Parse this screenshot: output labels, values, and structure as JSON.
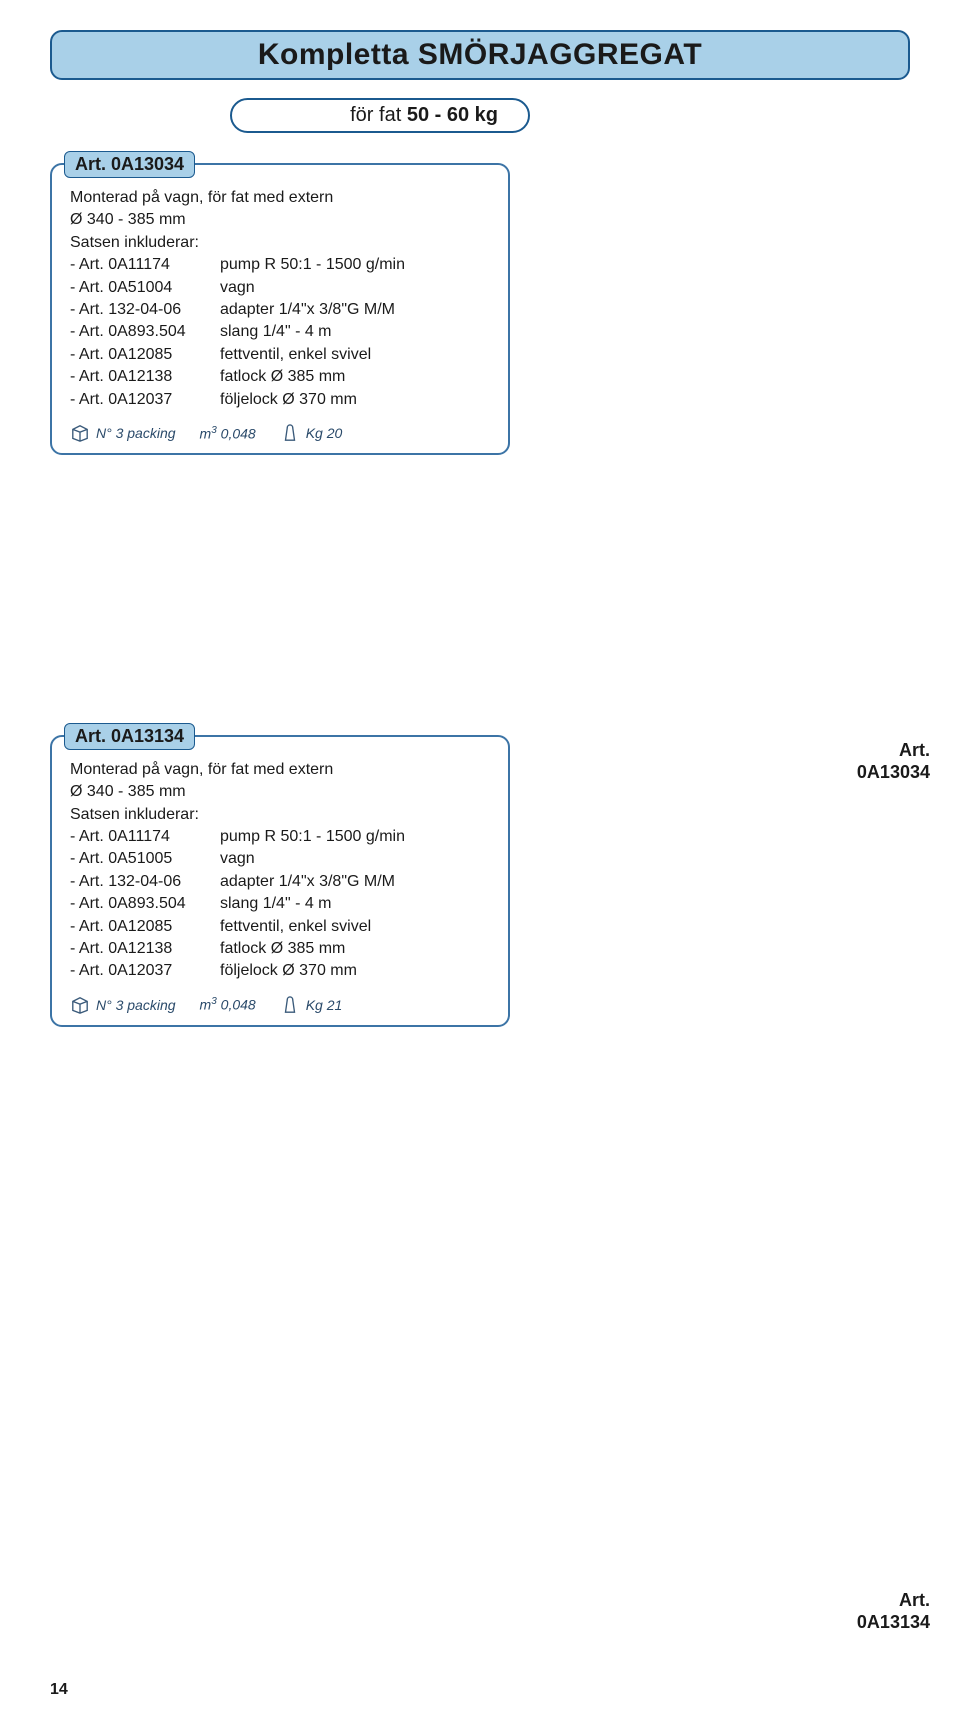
{
  "page_title": "Kompletta SMÖRJAGGREGAT",
  "subtitle_prefix": "för fat ",
  "subtitle_bold": "50 - 60 kg",
  "page_number": "14",
  "colors": {
    "header_bg": "#a9d0e8",
    "border": "#1b5a8f",
    "text": "#1a1a1a",
    "footer_text": "#2a4a6a"
  },
  "product1": {
    "header": "Art. 0A13034",
    "desc_line1": "Monterad på vagn, för fat med extern",
    "desc_line2": "Ø 340 - 385 mm",
    "desc_line3": "Satsen inkluderar:",
    "specs": [
      {
        "art": "- Art. 0A11174",
        "val": "pump R 50:1 - 1500 g/min"
      },
      {
        "art": "- Art. 0A51004",
        "val": "vagn"
      },
      {
        "art": "- Art. 132-04-06",
        "val": "adapter 1/4\"x 3/8\"G M/M"
      },
      {
        "art": "- Art. 0A893.504",
        "val": "slang 1/4\" - 4 m"
      },
      {
        "art": "- Art. 0A12085",
        "val": "fettventil, enkel svivel"
      },
      {
        "art": "- Art. 0A12138",
        "val": "fatlock Ø 385 mm"
      },
      {
        "art": "- Art. 0A12037",
        "val": "följelock Ø 370 mm"
      }
    ],
    "packing": "N° 3 packing",
    "volume_prefix": "m",
    "volume_sup": "3",
    "volume_val": " 0,048",
    "weight": "Kg 20",
    "caption_line1": "Art.",
    "caption_line2": "0A13034"
  },
  "product2": {
    "header": "Art. 0A13134",
    "desc_line1": "Monterad på vagn, för fat med extern",
    "desc_line2": "Ø 340 - 385 mm",
    "desc_line3": "Satsen inkluderar:",
    "specs": [
      {
        "art": "- Art. 0A11174",
        "val": "pump R 50:1 - 1500 g/min"
      },
      {
        "art": "- Art. 0A51005",
        "val": "vagn"
      },
      {
        "art": "- Art. 132-04-06",
        "val": "adapter 1/4\"x 3/8\"G M/M"
      },
      {
        "art": "- Art. 0A893.504",
        "val": "slang 1/4\" - 4 m"
      },
      {
        "art": "- Art. 0A12085",
        "val": "fettventil, enkel svivel"
      },
      {
        "art": "- Art. 0A12138",
        "val": "fatlock Ø 385 mm"
      },
      {
        "art": "- Art. 0A12037",
        "val": "följelock Ø 370 mm"
      }
    ],
    "packing": "N° 3 packing",
    "volume_prefix": "m",
    "volume_sup": "3",
    "volume_val": " 0,048",
    "weight": "Kg 21",
    "caption_line1": "Art.",
    "caption_line2": "0A13134"
  }
}
